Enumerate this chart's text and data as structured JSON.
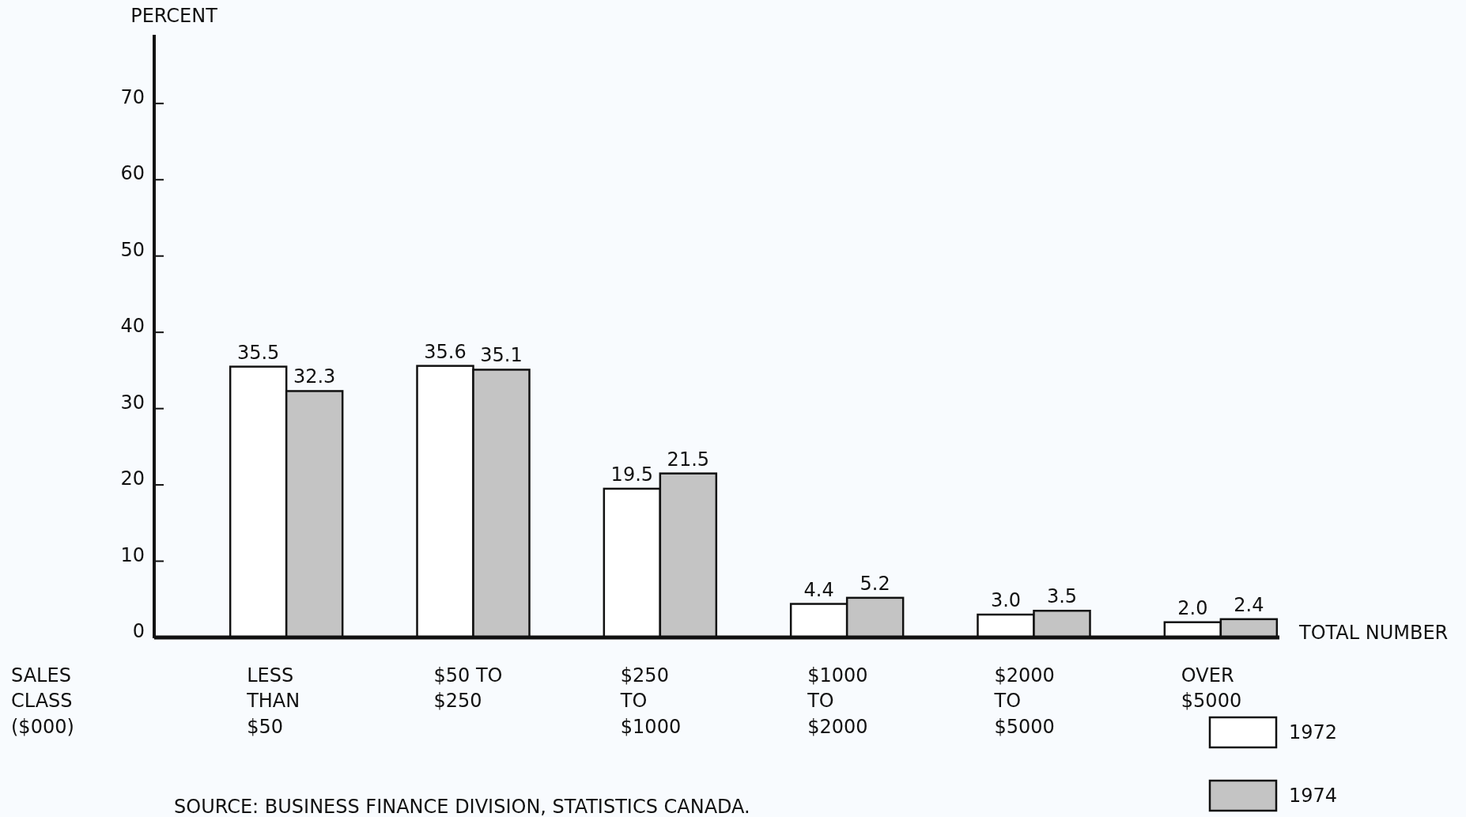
{
  "chart_data": {
    "type": "bar",
    "ylabel": "PERCENT",
    "xlabel": "SALES\nCLASS\n($000)",
    "categories": [
      "LESS\nTHAN\n$50",
      "$50 TO\n$250",
      "$250\nTO\n$1000",
      "$1000\nTO\n$2000",
      "$2000\nTO\n$5000",
      "OVER\n$5000"
    ],
    "series": [
      {
        "name": "1972",
        "color": "#ffffff",
        "values": [
          35.5,
          35.6,
          19.5,
          4.4,
          3.0,
          2.0
        ],
        "value_labels": [
          "35.5",
          "35.6",
          "19.5",
          "4.4",
          "3.0",
          "2.0"
        ]
      },
      {
        "name": "1974",
        "color": "#c4c4c4",
        "values": [
          32.3,
          35.1,
          21.5,
          5.2,
          3.5,
          2.4
        ],
        "value_labels": [
          "32.3",
          "35.1",
          "21.5",
          "5.2",
          "3.5",
          "2.4"
        ]
      }
    ],
    "ylim": [
      0,
      79
    ],
    "yticks": [
      0,
      10,
      20,
      30,
      40,
      50,
      60,
      70
    ],
    "legend": "bottom right",
    "grid": false,
    "annotations": [
      "TOTAL NUMBER",
      "SOURCE:  BUSINESS FINANCE DIVISION, STATISTICS CANADA."
    ]
  }
}
